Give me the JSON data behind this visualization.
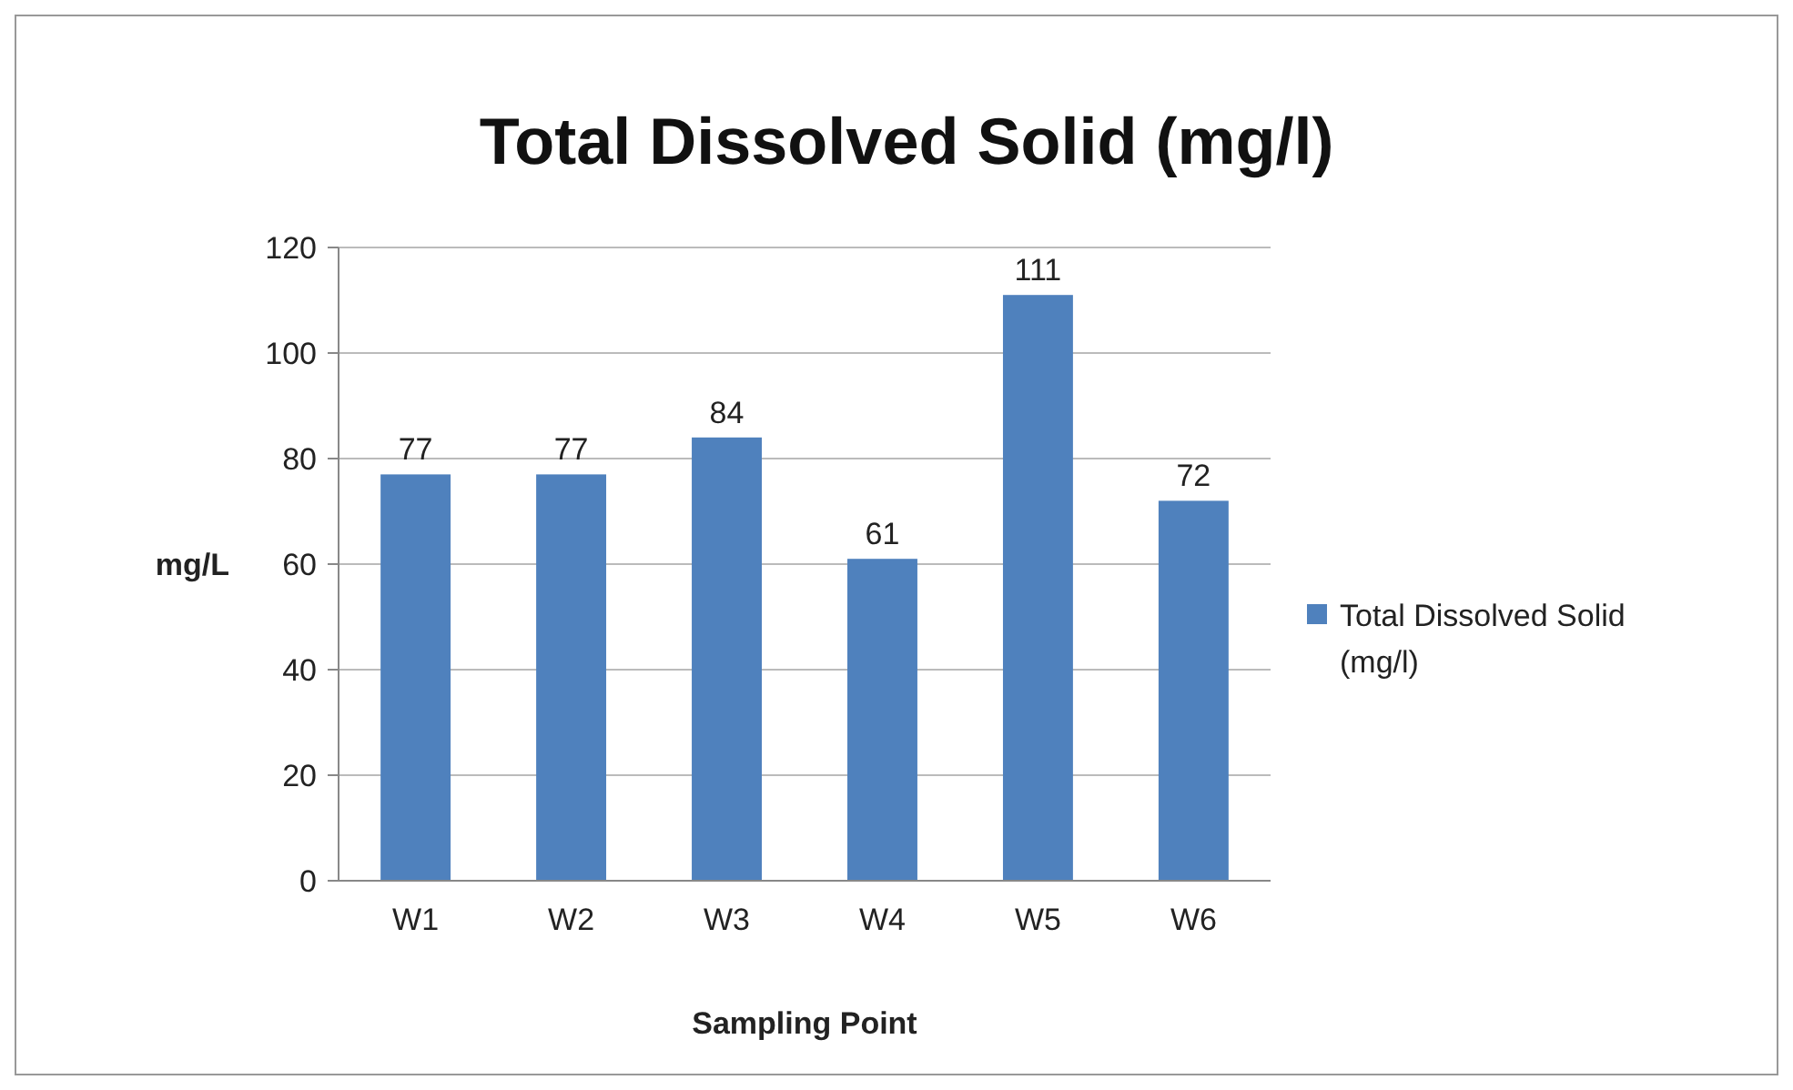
{
  "chart_data": {
    "type": "bar",
    "title": "Total Dissolved Solid (mg/l)",
    "xlabel": "Sampling Point",
    "ylabel": "mg/L",
    "categories": [
      "W1",
      "W2",
      "W3",
      "W4",
      "W5",
      "W6"
    ],
    "series": [
      {
        "name": "Total Dissolved Solid (mg/l)",
        "color": "#4f81bd",
        "values": [
          77,
          77,
          84,
          61,
          111,
          72
        ]
      }
    ],
    "ylim": [
      0,
      120
    ],
    "yticks": [
      0,
      20,
      40,
      60,
      80,
      100,
      120
    ],
    "grid": "y",
    "legend": "right",
    "data_labels": true
  }
}
